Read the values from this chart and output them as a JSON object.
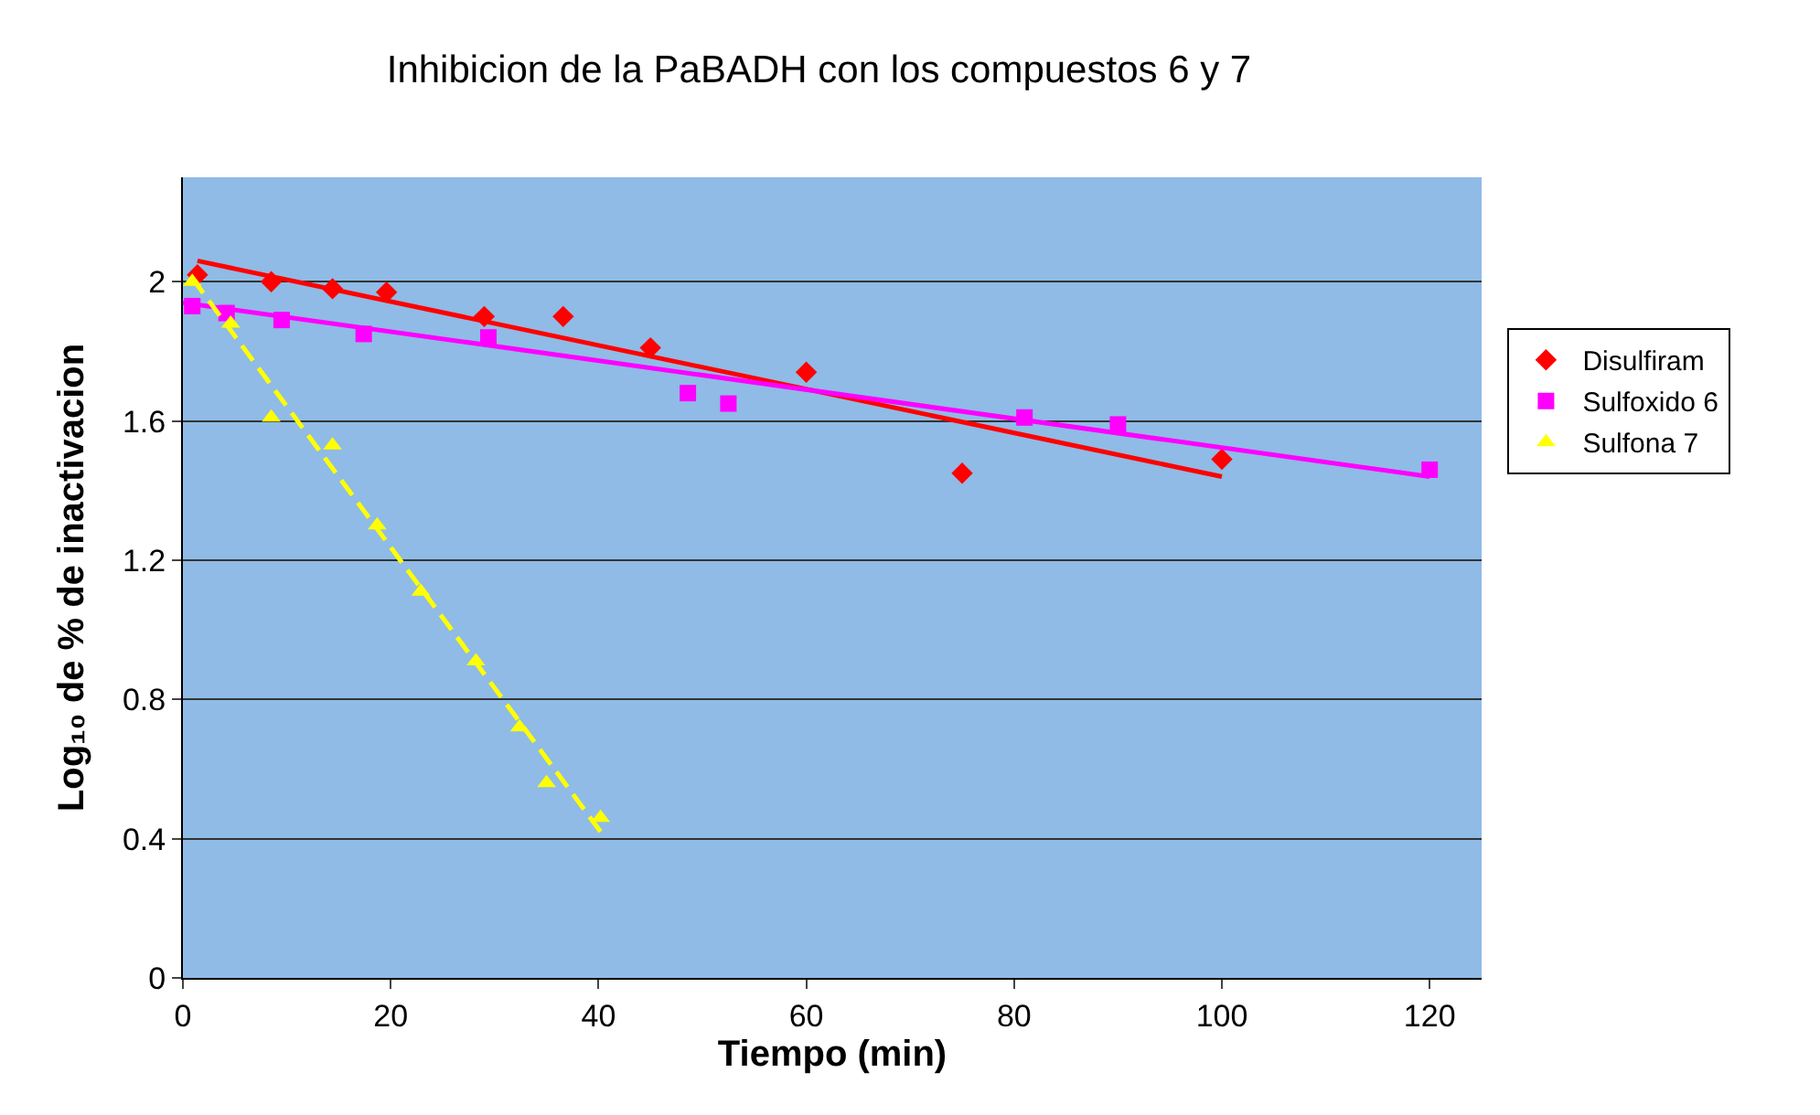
{
  "chart_data": {
    "type": "scatter",
    "title": "Inhibicion de la PaBADH con los compuestos 6 y 7",
    "xlabel": "Tiempo (min)",
    "ylabel": "Log₁₀ de % de inactivacion",
    "xlim": [
      0,
      125
    ],
    "ylim": [
      0,
      2.3
    ],
    "xticks": [
      0,
      20,
      40,
      60,
      80,
      100,
      120
    ],
    "yticks": [
      0,
      0.4,
      0.8,
      1.2,
      1.6,
      2
    ],
    "grid": "y",
    "legend": "right",
    "series": [
      {
        "name": "Disulfiram",
        "color": "#ff0000",
        "marker": "diamond",
        "x": [
          1.4,
          8.5,
          14.4,
          19.6,
          29,
          36.6,
          45,
          60,
          75,
          100
        ],
        "values": [
          2.02,
          2.0,
          1.98,
          1.97,
          1.9,
          1.9,
          1.81,
          1.74,
          1.45,
          1.49
        ]
      },
      {
        "name": "Sulfoxido 6",
        "color": "#ff00ff",
        "marker": "square",
        "x": [
          0.9,
          4.2,
          9.5,
          17.4,
          29.4,
          48.6,
          52.5,
          81,
          90,
          120
        ],
        "values": [
          1.93,
          1.91,
          1.89,
          1.85,
          1.84,
          1.68,
          1.65,
          1.61,
          1.59,
          1.46
        ]
      },
      {
        "name": "Sulfona 7",
        "color": "#ffff00",
        "marker": "triangle",
        "x": [
          0.9,
          4.6,
          8.5,
          14.4,
          18.7,
          22.9,
          28.2,
          32.4,
          35,
          40.2
        ],
        "values": [
          2.0,
          1.88,
          1.61,
          1.53,
          1.3,
          1.11,
          0.91,
          0.72,
          0.56,
          0.46
        ]
      },
      {
        "type": "line",
        "color": "#ff0000",
        "line_style": "solid",
        "x": [
          1.4,
          100
        ],
        "values": [
          2.06,
          1.44
        ]
      },
      {
        "type": "line",
        "color": "#ff00ff",
        "line_style": "solid",
        "x": [
          0,
          120
        ],
        "values": [
          1.94,
          1.44
        ]
      },
      {
        "type": "line",
        "color": "#ffff00",
        "line_style": "dashed",
        "x": [
          0.9,
          40.2
        ],
        "values": [
          2.01,
          0.42
        ]
      }
    ]
  }
}
